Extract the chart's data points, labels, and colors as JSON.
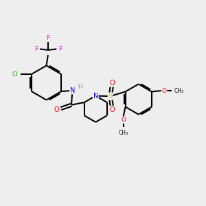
{
  "background_color": "#eeeeee",
  "bond_color": "#000000",
  "atom_colors": {
    "F": "#ff00ff",
    "Cl": "#00bb00",
    "N": "#0000ff",
    "O": "#ff0000",
    "S": "#cccc00",
    "H": "#888888",
    "C": "#000000"
  },
  "figsize": [
    3.0,
    3.0
  ],
  "dpi": 100
}
